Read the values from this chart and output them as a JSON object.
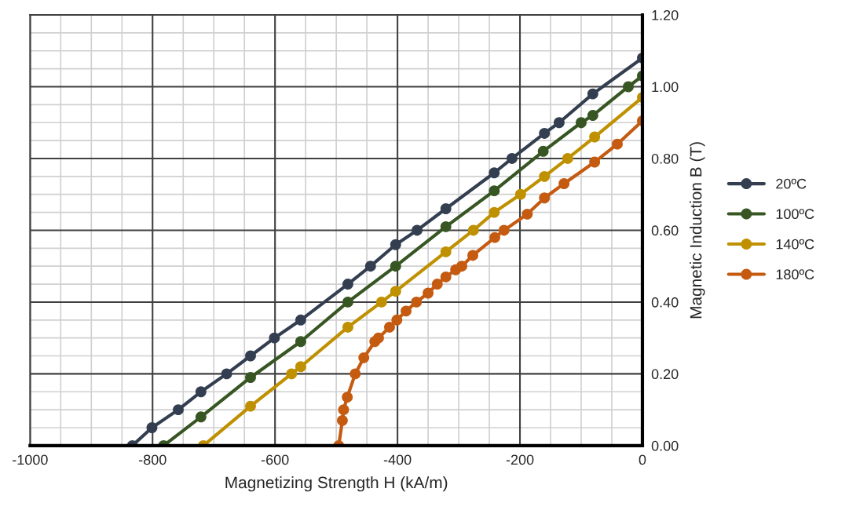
{
  "chart_data": {
    "type": "line",
    "xlabel": "Magnetizing Strength H (kA/m)",
    "ylabel": "Magnetic Induction B (T)",
    "xlim": [
      -1000,
      0
    ],
    "xticks": [
      -1000,
      -800,
      -600,
      -400,
      -200,
      0
    ],
    "ylim": [
      0,
      1.2
    ],
    "yticks": [
      {
        "value": 0,
        "label": "0.00"
      },
      {
        "value": 0.2,
        "label": "0.20"
      },
      {
        "value": 0.4,
        "label": "0.40"
      },
      {
        "value": 0.6,
        "label": "0.60"
      },
      {
        "value": 0.8,
        "label": "0.80"
      },
      {
        "value": 1.0,
        "label": "1.00"
      },
      {
        "value": 1.2,
        "label": "1.20"
      }
    ],
    "grid": true,
    "legend": "right",
    "marker": "circle",
    "line_style": "solid",
    "series": [
      {
        "name": "20ºC",
        "color": "#333f50",
        "x": [
          -833,
          -801,
          -758,
          -721,
          -679,
          -640,
          -601,
          -558,
          -481,
          -444,
          -403,
          -368,
          -321,
          -242,
          -213,
          -160,
          -136,
          -81,
          0
        ],
        "values": [
          0,
          0.05,
          0.1,
          0.15,
          0.2,
          0.25,
          0.3,
          0.35,
          0.45,
          0.5,
          0.56,
          0.6,
          0.66,
          0.76,
          0.8,
          0.87,
          0.9,
          0.98,
          1.08
        ]
      },
      {
        "name": "100ºC",
        "color": "#375623",
        "x": [
          -782,
          -721,
          -640,
          -558,
          -481,
          -403,
          -321,
          -242,
          -162,
          -100,
          -81,
          -23,
          0
        ],
        "values": [
          0,
          0.08,
          0.19,
          0.29,
          0.4,
          0.5,
          0.61,
          0.71,
          0.82,
          0.9,
          0.92,
          1.0,
          1.03
        ]
      },
      {
        "name": "140ºC",
        "color": "#bf9000",
        "x": [
          -717,
          -640,
          -573,
          -558,
          -481,
          -426,
          -403,
          -321,
          -276,
          -242,
          -199,
          -160,
          -122,
          -78,
          0
        ],
        "values": [
          0,
          0.11,
          0.2,
          0.22,
          0.33,
          0.4,
          0.43,
          0.54,
          0.6,
          0.65,
          0.7,
          0.75,
          0.8,
          0.86,
          0.97
        ]
      },
      {
        "name": "180ºC",
        "color": "#c55a11",
        "x": [
          -496,
          -490,
          -488,
          -482,
          -469,
          -455,
          -437,
          -431,
          -413,
          -401,
          -386,
          -369,
          -350,
          -335,
          -321,
          -305,
          -295,
          -277,
          -241,
          -226,
          -188,
          -160,
          -128,
          -78,
          -41,
          0
        ],
        "values": [
          0,
          0.07,
          0.1,
          0.135,
          0.2,
          0.245,
          0.29,
          0.3,
          0.33,
          0.35,
          0.375,
          0.4,
          0.425,
          0.45,
          0.47,
          0.49,
          0.5,
          0.53,
          0.58,
          0.6,
          0.645,
          0.69,
          0.73,
          0.79,
          0.84,
          0.905
        ]
      }
    ]
  }
}
